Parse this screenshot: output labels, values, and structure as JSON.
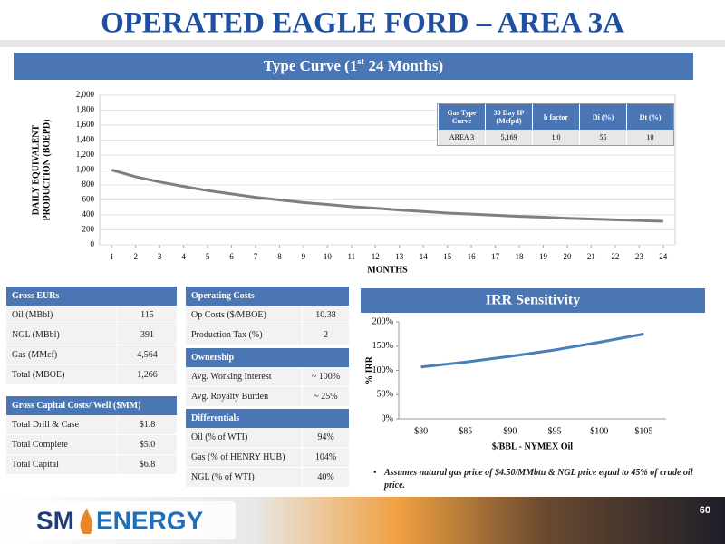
{
  "header": {
    "title": "OPERATED EAGLE FORD – AREA 3A",
    "banner": [
      "Type Curve (1",
      "st",
      " 24 Months)"
    ]
  },
  "chart_data": [
    {
      "type": "line",
      "y_label": [
        "DAILY EQUIVALENT",
        "PRODUCTION (BOEPD)"
      ],
      "x_label": "MONTHS",
      "x": [
        1,
        2,
        3,
        4,
        5,
        6,
        7,
        8,
        9,
        10,
        11,
        12,
        13,
        14,
        15,
        16,
        17,
        18,
        19,
        20,
        21,
        22,
        23,
        24
      ],
      "values": [
        1000,
        910,
        840,
        780,
        725,
        680,
        635,
        600,
        565,
        540,
        510,
        490,
        465,
        445,
        425,
        410,
        395,
        380,
        370,
        355,
        345,
        335,
        325,
        315
      ],
      "color": "#7f7f7f",
      "xlim": [
        0.5,
        24.5
      ],
      "xticks": [
        1,
        2,
        3,
        4,
        5,
        6,
        7,
        8,
        9,
        10,
        11,
        12,
        13,
        14,
        15,
        16,
        17,
        18,
        19,
        20,
        21,
        22,
        23,
        24
      ],
      "ylim": [
        0,
        2000
      ],
      "yticks": [
        0,
        200,
        400,
        600,
        800,
        {
          "value": 1000,
          "label": "1,000"
        },
        {
          "value": 1200,
          "label": "1,200"
        },
        {
          "value": 1400,
          "label": "1,400"
        },
        {
          "value": 1600,
          "label": "1,600"
        },
        {
          "value": 1800,
          "label": "1,800"
        },
        {
          "value": 2000,
          "label": "2,000"
        }
      ],
      "grid": true
    },
    {
      "type": "line",
      "title": "IRR Sensitivity",
      "y_label": [
        "% IRR"
      ],
      "x_label": "$/BBL - NYMEX Oil",
      "categories": [
        "$80",
        "$85",
        "$90",
        "$95",
        "$100",
        "$105"
      ],
      "values": [
        107,
        117,
        129,
        142,
        158,
        175
      ],
      "color": "#4a7ebb",
      "ylim": [
        0,
        200
      ],
      "yticks": [
        {
          "value": 0,
          "label": "0%"
        },
        {
          "value": 50,
          "label": "50%"
        },
        {
          "value": 100,
          "label": "100%"
        },
        {
          "value": 150,
          "label": "150%"
        },
        {
          "value": 200,
          "label": "200%"
        }
      ],
      "grid": false
    }
  ],
  "inset_table": {
    "headers": [
      "Gas Type Curve",
      "30 Day IP (Mcfpd)",
      "b factor",
      "Di (%)",
      "Dt (%)"
    ],
    "rows": [
      [
        "AREA 3",
        "5,169",
        "1.0",
        "55",
        "10"
      ]
    ]
  },
  "tables": [
    {
      "header": "Gross EURs",
      "rows": [
        [
          "Oil (MBbl)",
          "115"
        ],
        [
          "NGL (MBbl)",
          "391"
        ],
        [
          "Gas (MMcf)",
          "4,564"
        ],
        [
          "Total (MBOE)",
          "1,266"
        ]
      ]
    },
    {
      "header": "Gross Capital Costs/ Well ($MM)",
      "rows": [
        [
          "Total Drill & Case",
          "$1.8"
        ],
        [
          "Total Complete",
          "$5.0"
        ],
        [
          "Total Capital",
          "$6.8"
        ]
      ]
    },
    {
      "header": "Operating Costs",
      "rows": [
        [
          "Op Costs ($/MBOE)",
          "10.38"
        ],
        [
          "Production Tax (%)",
          "2"
        ]
      ]
    },
    {
      "header": "Ownership",
      "rows": [
        [
          "Avg. Working Interest",
          "~ 100%"
        ],
        [
          "Avg. Royalty Burden",
          "~ 25%"
        ]
      ]
    },
    {
      "header": "Differentials",
      "rows": [
        [
          "Oil  (% of WTI)",
          "94%"
        ],
        [
          "Gas  (% of HENRY HUB)",
          "104%"
        ],
        [
          "NGL  (% of WTI)",
          "40%"
        ]
      ]
    }
  ],
  "footnote": "Assumes natural gas price of $4.50/MMbtu & NGL price equal to 45% of crude oil price.",
  "page_number": "60",
  "logo": [
    "SM",
    "ENERGY"
  ]
}
